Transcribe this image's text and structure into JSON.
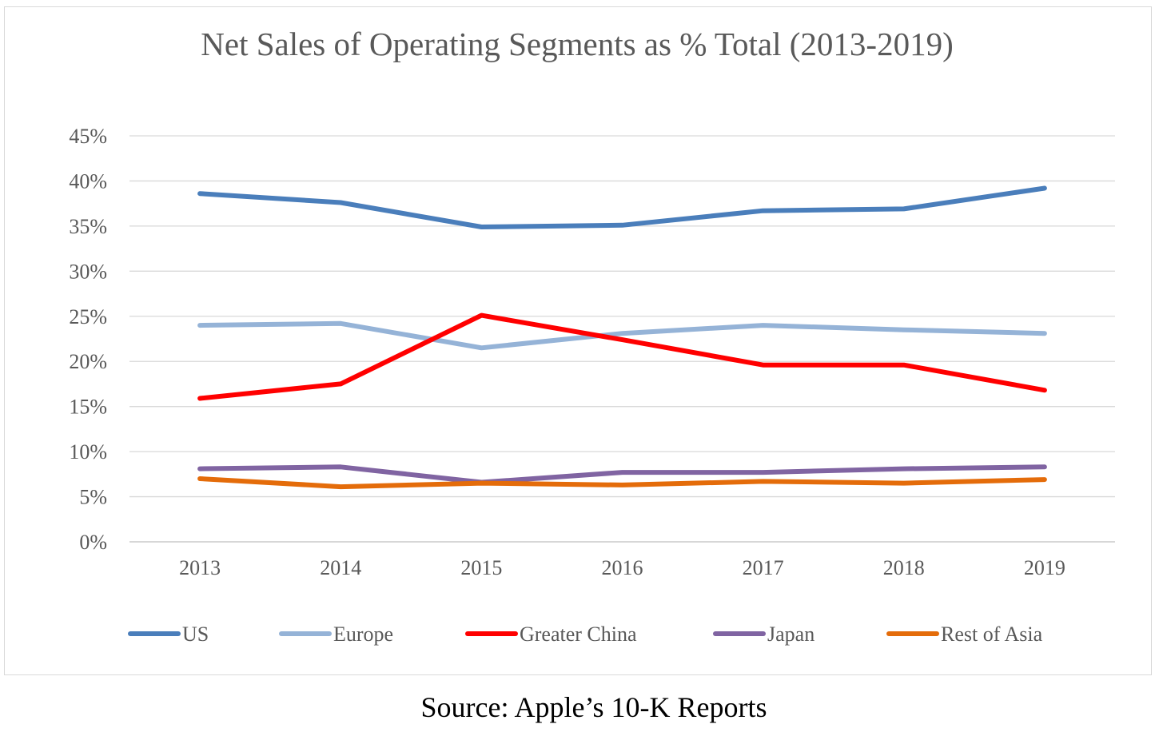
{
  "chart_data": {
    "type": "line",
    "title": "Net Sales of Operating Segments as % Total (2013-2019)",
    "xlabel": "",
    "ylabel": "",
    "categories": [
      "2013",
      "2014",
      "2015",
      "2016",
      "2017",
      "2018",
      "2019"
    ],
    "y_ticks": [
      "0%",
      "5%",
      "10%",
      "15%",
      "20%",
      "25%",
      "30%",
      "35%",
      "40%",
      "45%"
    ],
    "ylim": [
      0,
      45
    ],
    "grid": "horizontal",
    "legend_position": "bottom",
    "series": [
      {
        "name": "US",
        "color": "#4a7ebb",
        "values": [
          38.6,
          37.6,
          34.9,
          35.1,
          36.7,
          36.9,
          39.2
        ]
      },
      {
        "name": "Europe",
        "color": "#95b3d7",
        "values": [
          24.0,
          24.2,
          21.5,
          23.1,
          24.0,
          23.5,
          23.1
        ]
      },
      {
        "name": "Greater China",
        "color": "#ff0000",
        "values": [
          15.9,
          17.5,
          25.1,
          22.4,
          19.6,
          19.6,
          16.8
        ]
      },
      {
        "name": "Japan",
        "color": "#8064a2",
        "values": [
          8.1,
          8.3,
          6.6,
          7.7,
          7.7,
          8.1,
          8.3
        ]
      },
      {
        "name": "Rest of Asia",
        "color": "#e46c0a",
        "values": [
          7.0,
          6.1,
          6.5,
          6.3,
          6.7,
          6.5,
          6.9
        ]
      }
    ]
  },
  "source": "Source: Apple’s 10-K Reports"
}
